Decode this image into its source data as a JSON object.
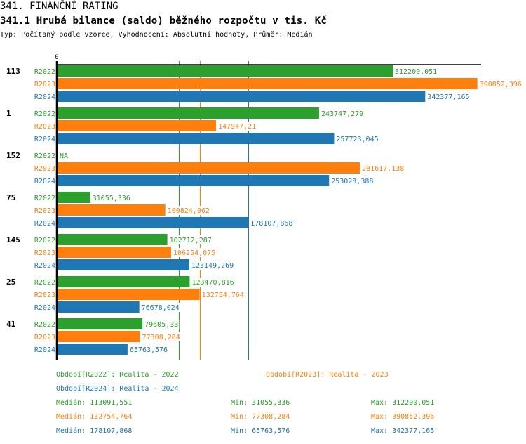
{
  "header": {
    "title": "341. FINANČNÍ RATING",
    "subtitle": "341.1 Hrubá bilance (saldo) běžného rozpočtu v tis. Kč",
    "description": "Typ: Počítaný podle vzorce, Vyhodnocení: Absolutní hodnoty, Průměr: Medián"
  },
  "colors": {
    "R2022": "#2ca02c",
    "R2023": "#ff7f0e",
    "R2024": "#1f77b4",
    "axis": "#000000"
  },
  "chart_data": {
    "type": "bar",
    "orientation": "horizontal",
    "title": "341.1 Hrubá bilance (saldo) běžného rozpočtu v tis. Kč",
    "xlabel": "",
    "ylabel": "",
    "x_tick_labels": [
      "0"
    ],
    "xlim": [
      0,
      400000
    ],
    "grid": false,
    "categories": [
      "113",
      "1",
      "152",
      "75",
      "145",
      "25",
      "41"
    ],
    "series": [
      {
        "name": "R2022",
        "values": [
          312200.051,
          243747.279,
          null,
          31055.336,
          102712.287,
          123470.816,
          79605.33
        ],
        "labels": [
          "312200,051",
          "243747,279",
          "NA",
          "31055,336",
          "102712,287",
          "123470,816",
          "79605,33"
        ]
      },
      {
        "name": "R2023",
        "values": [
          390852.396,
          147947.21,
          281617.138,
          100824.962,
          106254.075,
          132754.764,
          77308.284
        ],
        "labels": [
          "390852,396",
          "147947,21",
          "281617,138",
          "100824,962",
          "106254,075",
          "132754,764",
          "77308,284"
        ]
      },
      {
        "name": "R2024",
        "values": [
          342377.165,
          257723.045,
          253028.388,
          178107.868,
          123149.269,
          76678.024,
          65763.576
        ],
        "labels": [
          "342377,165",
          "257723,045",
          "253028,388",
          "178107,868",
          "123149,269",
          "76678,024",
          "65763,576"
        ]
      }
    ],
    "reference_lines": [
      {
        "series": "R2022",
        "type": "median",
        "value": 113091.551
      },
      {
        "series": "R2023",
        "type": "median",
        "value": 132754.764
      },
      {
        "series": "R2024",
        "type": "median",
        "value": 178107.868
      }
    ],
    "legend_position": "bottom"
  },
  "legend": {
    "periods": [
      {
        "series": "R2022",
        "text": "Období[R2022]: Realita - 2022"
      },
      {
        "series": "R2023",
        "text": "Období[R2023]: Realita - 2023"
      },
      {
        "series": "R2024",
        "text": "Období[R2024]: Realita - 2024"
      }
    ],
    "stats": [
      {
        "series": "R2022",
        "median": "Medián: 113091,551",
        "min": "Min: 31055,336",
        "max": "Max: 312200,051"
      },
      {
        "series": "R2023",
        "median": "Medián: 132754,764",
        "min": "Min: 77308,284",
        "max": "Max: 390852,396"
      },
      {
        "series": "R2024",
        "median": "Medián: 178107,868",
        "min": "Min: 65763,576",
        "max": "Max: 342377,165"
      }
    ]
  }
}
